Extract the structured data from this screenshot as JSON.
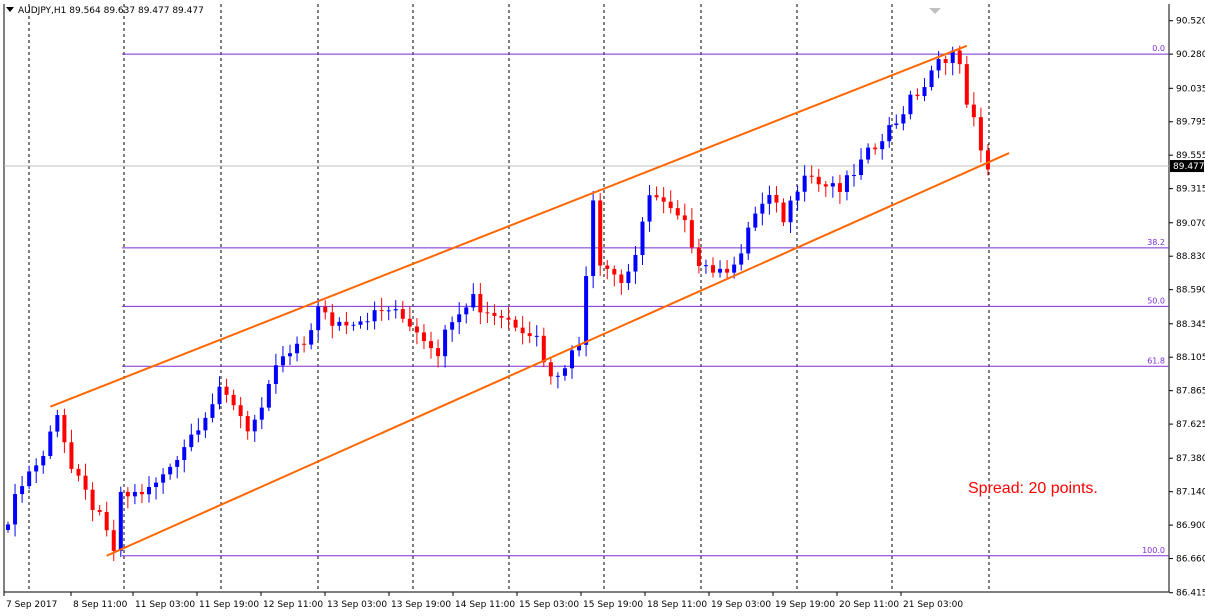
{
  "header": {
    "symbol_line": "AUDJPY,H1  89.564 89.637 89.477 89.477"
  },
  "spread_text": "Spread: 20 points.",
  "colors": {
    "bull": "#0000ff",
    "bear": "#ff0000",
    "channel": "#ff6600",
    "fib": "#7b2fd6",
    "grid": "#000000",
    "price_box": "#000000"
  },
  "chart_data": {
    "type": "candlestick",
    "title": "",
    "xlabel": "",
    "ylabel": "",
    "ylim": [
      86.42,
      90.64
    ],
    "grid": "vertical dashed",
    "x_ticks": [
      "7 Sep 2017",
      "8 Sep 11:00",
      "11 Sep 03:00",
      "11 Sep 19:00",
      "12 Sep 11:00",
      "13 Sep 03:00",
      "13 Sep 19:00",
      "14 Sep 11:00",
      "15 Sep 03:00",
      "15 Sep 19:00",
      "18 Sep 11:00",
      "19 Sep 03:00",
      "19 Sep 19:00",
      "20 Sep 11:00",
      "21 Sep 03:00"
    ],
    "y_ticks": [
      "90.520",
      "90.280",
      "90.035",
      "89.795",
      "89.555",
      "89.315",
      "89.070",
      "88.830",
      "88.590",
      "88.345",
      "88.105",
      "87.865",
      "87.625",
      "87.380",
      "87.140",
      "86.900",
      "86.660",
      "86.415"
    ],
    "current_price": "89.477",
    "fib_levels": [
      {
        "label": "0.0",
        "price": 90.28
      },
      {
        "label": "38.2",
        "price": 88.89
      },
      {
        "label": "50.0",
        "price": 88.47
      },
      {
        "label": "61.8",
        "price": 88.04
      },
      {
        "label": "100.0",
        "price": 86.68
      }
    ],
    "channel": {
      "upper": {
        "start": {
          "bar": 6,
          "price": 87.75
        },
        "end": {
          "bar": 136,
          "price": 90.34
        }
      },
      "lower": {
        "start": {
          "bar": 14,
          "price": 86.68
        },
        "end": {
          "bar": 142,
          "price": 89.57
        }
      }
    },
    "waypoints": [
      [
        0,
        86.95
      ],
      [
        2,
        87.22
      ],
      [
        5,
        87.4
      ],
      [
        7,
        87.72
      ],
      [
        9,
        87.3
      ],
      [
        13,
        86.95
      ],
      [
        15,
        86.72
      ],
      [
        16,
        87.1
      ],
      [
        20,
        87.15
      ],
      [
        22,
        87.25
      ],
      [
        26,
        87.55
      ],
      [
        30,
        87.85
      ],
      [
        32,
        87.78
      ],
      [
        34,
        87.6
      ],
      [
        36,
        87.7
      ],
      [
        38,
        88.05
      ],
      [
        42,
        88.2
      ],
      [
        44,
        88.45
      ],
      [
        46,
        88.35
      ],
      [
        50,
        88.38
      ],
      [
        54,
        88.45
      ],
      [
        57,
        88.35
      ],
      [
        61,
        88.15
      ],
      [
        63,
        88.4
      ],
      [
        66,
        88.55
      ],
      [
        67,
        88.45
      ],
      [
        70,
        88.4
      ],
      [
        73,
        88.32
      ],
      [
        75,
        88.25
      ],
      [
        77,
        87.95
      ],
      [
        78,
        88.0
      ],
      [
        81,
        88.2
      ],
      [
        83,
        89.25
      ],
      [
        84,
        88.8
      ],
      [
        87,
        88.65
      ],
      [
        89,
        88.8
      ],
      [
        91,
        89.3
      ],
      [
        93,
        89.2
      ],
      [
        96,
        89.05
      ],
      [
        98,
        88.8
      ],
      [
        101,
        88.7
      ],
      [
        104,
        88.85
      ],
      [
        106,
        89.15
      ],
      [
        108,
        89.25
      ],
      [
        110,
        89.1
      ],
      [
        113,
        89.45
      ],
      [
        115,
        89.35
      ],
      [
        118,
        89.3
      ],
      [
        121,
        89.5
      ],
      [
        124,
        89.7
      ],
      [
        126,
        89.8
      ],
      [
        128,
        89.95
      ],
      [
        130,
        90.05
      ],
      [
        132,
        90.22
      ],
      [
        134,
        90.3
      ],
      [
        135,
        90.18
      ],
      [
        136,
        89.95
      ],
      [
        137,
        89.8
      ],
      [
        138,
        89.56
      ],
      [
        139,
        89.48
      ]
    ]
  }
}
